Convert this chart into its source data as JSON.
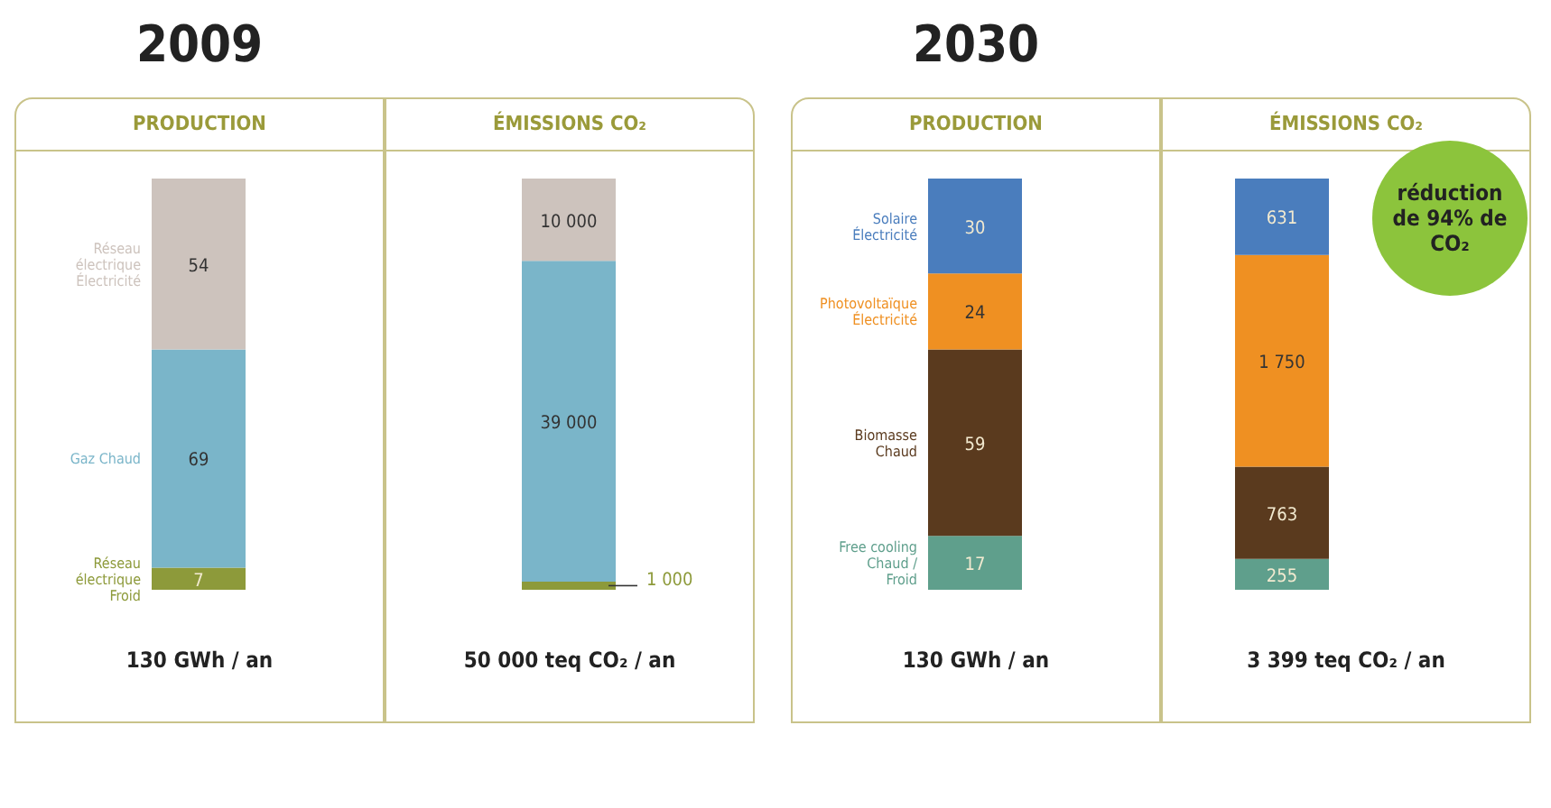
{
  "chart_data": [
    {
      "type": "bar",
      "title": "2009",
      "subtitle": "PRODUCTION",
      "xlabel": "130 GWh / an",
      "categories": [
        null
      ],
      "stacked": true,
      "data_labels": true,
      "series": [
        {
          "name": "Réseau électrique Froid",
          "color": "#8d9a3a",
          "values": [
            7
          ]
        },
        {
          "name": "Gaz Chaud",
          "color": "#7ab5c9",
          "values": [
            69
          ]
        },
        {
          "name": "Réseau électrique Électricité",
          "color": "#cdc3bd",
          "values": [
            54
          ]
        }
      ]
    },
    {
      "type": "bar",
      "subtitle": "ÉMISSIONS CO₂",
      "xlabel": "50 000 teq CO₂ / an",
      "categories": [
        null
      ],
      "stacked": true,
      "data_labels": true,
      "series": [
        {
          "color": "#8d9a3a",
          "values": [
            1000
          ]
        },
        {
          "color": "#7ab5c9",
          "values": [
            39000
          ]
        },
        {
          "color": "#cdc3bd",
          "values": [
            10000
          ]
        }
      ]
    },
    {
      "type": "bar",
      "title": "2030",
      "subtitle": "PRODUCTION",
      "xlabel": "130 GWh / an",
      "categories": [
        null
      ],
      "stacked": true,
      "data_labels": true,
      "series": [
        {
          "name": "Free cooling Chaud / Froid",
          "color": "#5f9f8c",
          "values": [
            17
          ]
        },
        {
          "name": "Biomasse Chaud",
          "color": "#5a3a1e",
          "values": [
            59
          ]
        },
        {
          "name": "Photovoltaïque Électricité",
          "color": "#ef9022",
          "values": [
            24
          ]
        },
        {
          "name": "Solaire Électricité",
          "color": "#4a7dbd",
          "values": [
            30
          ]
        }
      ]
    },
    {
      "type": "bar",
      "subtitle": "ÉMISSIONS CO₂",
      "xlabel": "3 399 teq CO₂ / an",
      "categories": [
        null
      ],
      "stacked": true,
      "data_labels": true,
      "annotations": [
        "réduction de 94% de CO₂"
      ],
      "series": [
        {
          "color": "#5f9f8c",
          "values": [
            255
          ]
        },
        {
          "color": "#5a3a1e",
          "values": [
            763
          ]
        },
        {
          "color": "#ef9022",
          "values": [
            1750
          ]
        },
        {
          "color": "#4a7dbd",
          "values": [
            631
          ]
        }
      ]
    }
  ]
}
